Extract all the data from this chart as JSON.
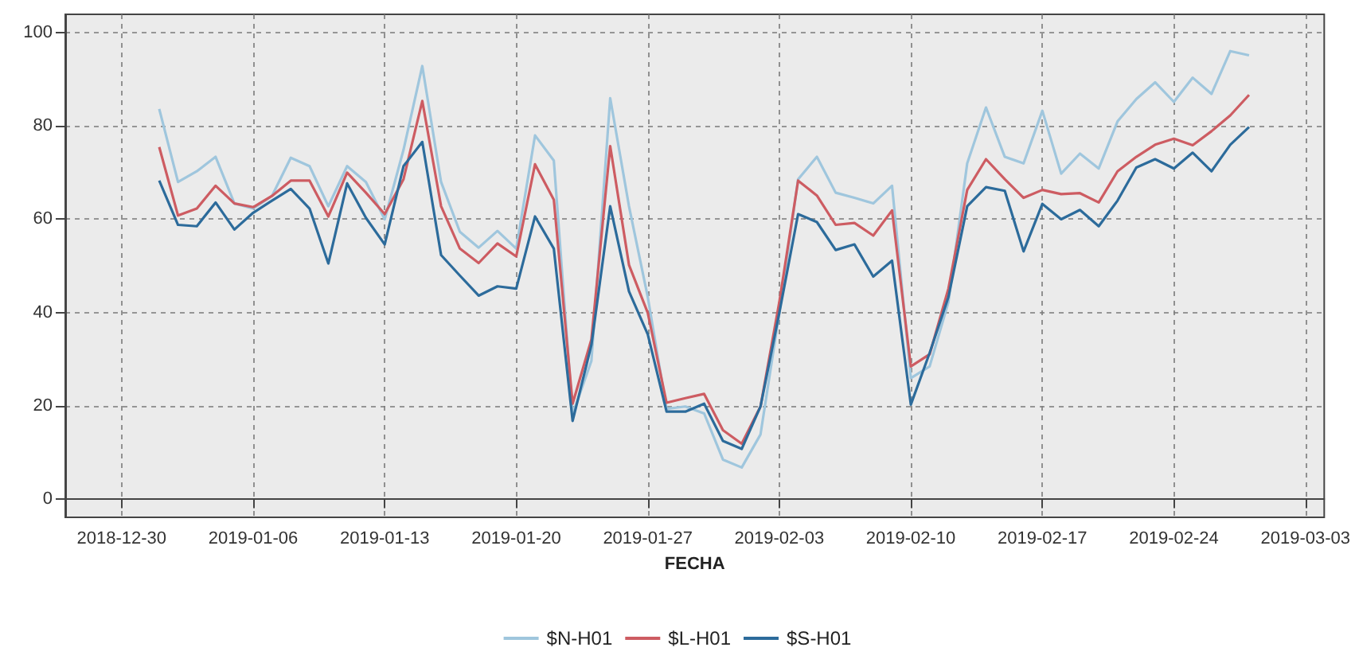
{
  "chart_data": {
    "type": "line",
    "xlabel": "FECHA",
    "x": [
      "2019-01-01",
      "2019-01-02",
      "2019-01-03",
      "2019-01-04",
      "2019-01-05",
      "2019-01-06",
      "2019-01-07",
      "2019-01-08",
      "2019-01-09",
      "2019-01-10",
      "2019-01-11",
      "2019-01-12",
      "2019-01-13",
      "2019-01-14",
      "2019-01-15",
      "2019-01-16",
      "2019-01-17",
      "2019-01-18",
      "2019-01-19",
      "2019-01-20",
      "2019-01-21",
      "2019-01-22",
      "2019-01-23",
      "2019-01-24",
      "2019-01-25",
      "2019-01-26",
      "2019-01-27",
      "2019-01-28",
      "2019-01-29",
      "2019-01-30",
      "2019-01-31",
      "2019-02-01",
      "2019-02-02",
      "2019-02-03",
      "2019-02-04",
      "2019-02-05",
      "2019-02-06",
      "2019-02-07",
      "2019-02-08",
      "2019-02-09",
      "2019-02-10",
      "2019-02-11",
      "2019-02-12",
      "2019-02-13",
      "2019-02-14",
      "2019-02-15",
      "2019-02-16",
      "2019-02-17",
      "2019-02-18",
      "2019-02-19",
      "2019-02-20",
      "2019-02-21",
      "2019-02-22",
      "2019-02-23",
      "2019-02-24",
      "2019-02-25",
      "2019-02-26",
      "2019-02-27",
      "2019-02-28"
    ],
    "series": [
      {
        "name": "$N-H01",
        "color": "#9fc6dd",
        "values": [
          83.7,
          68,
          70.3,
          73.4,
          63.4,
          62.3,
          65,
          73.2,
          71.4,
          62.8,
          71.4,
          68,
          60,
          74.9,
          92.9,
          68,
          57.3,
          53.9,
          57.5,
          53.7,
          78,
          72.6,
          18.1,
          29.6,
          86,
          62.8,
          43.3,
          19.3,
          19.8,
          18.3,
          8.4,
          6.7,
          13.8,
          39.9,
          68.6,
          73.4,
          65.7,
          64.6,
          63.4,
          67.2,
          25.9,
          28.4,
          42.2,
          72,
          84,
          73.4,
          72,
          83.3,
          69.8,
          74.1,
          70.9,
          81,
          85.8,
          89.4,
          85.2,
          90.4,
          86.9,
          96.1,
          95.2
        ]
      },
      {
        "name": "$L-H01",
        "color": "#cd5c62",
        "values": [
          75.5,
          60.8,
          62.3,
          67.2,
          63.4,
          62.6,
          65,
          68.3,
          68.3,
          60.6,
          70,
          65.7,
          61.1,
          68.6,
          85.4,
          62.8,
          53.7,
          50.6,
          54.8,
          52,
          71.8,
          64.2,
          20.4,
          34.2,
          75.7,
          50.2,
          39.9,
          20.6,
          21.6,
          22.5,
          14.7,
          11.8,
          19.8,
          42.2,
          68.3,
          65.1,
          58.8,
          59.2,
          56.5,
          61.9,
          28.4,
          31,
          45.1,
          66.3,
          72.9,
          68.6,
          64.6,
          66.3,
          65.4,
          65.6,
          63.6,
          70.3,
          73.4,
          76,
          77.3,
          75.9,
          78.9,
          82.3,
          86.7
        ]
      },
      {
        "name": "$S-H01",
        "color": "#2c6b9b",
        "values": [
          68.3,
          58.8,
          58.5,
          63.6,
          57.8,
          61.4,
          64,
          66.5,
          62.3,
          50.5,
          67.7,
          60.3,
          54.6,
          71.4,
          76.6,
          52.3,
          47.9,
          43.6,
          45.6,
          45.1,
          60.6,
          53.7,
          16.7,
          33,
          62.8,
          44.5,
          35.3,
          18.7,
          18.7,
          20.4,
          12.4,
          10.7,
          19.8,
          39.9,
          61.1,
          59.4,
          53.4,
          54.6,
          47.7,
          51.1,
          20.2,
          31.3,
          43.3,
          62.8,
          66.9,
          66.1,
          53.1,
          63.3,
          60,
          62,
          58.5,
          64,
          71.1,
          72.9,
          70.9,
          74.3,
          70.3,
          76,
          79.8
        ]
      }
    ],
    "xlim": [
      "2018-12-27",
      "2019-03-04"
    ],
    "xticks": [
      "2018-12-30",
      "2019-01-06",
      "2019-01-13",
      "2019-01-20",
      "2019-01-27",
      "2019-02-03",
      "2019-02-10",
      "2019-02-17",
      "2019-02-24",
      "2019-03-03"
    ],
    "ylim": [
      -4,
      104
    ],
    "yticks": [
      0,
      20,
      40,
      60,
      80,
      100
    ],
    "grid": true,
    "legend": "bottom",
    "marker": "none",
    "line_style": "solid"
  }
}
